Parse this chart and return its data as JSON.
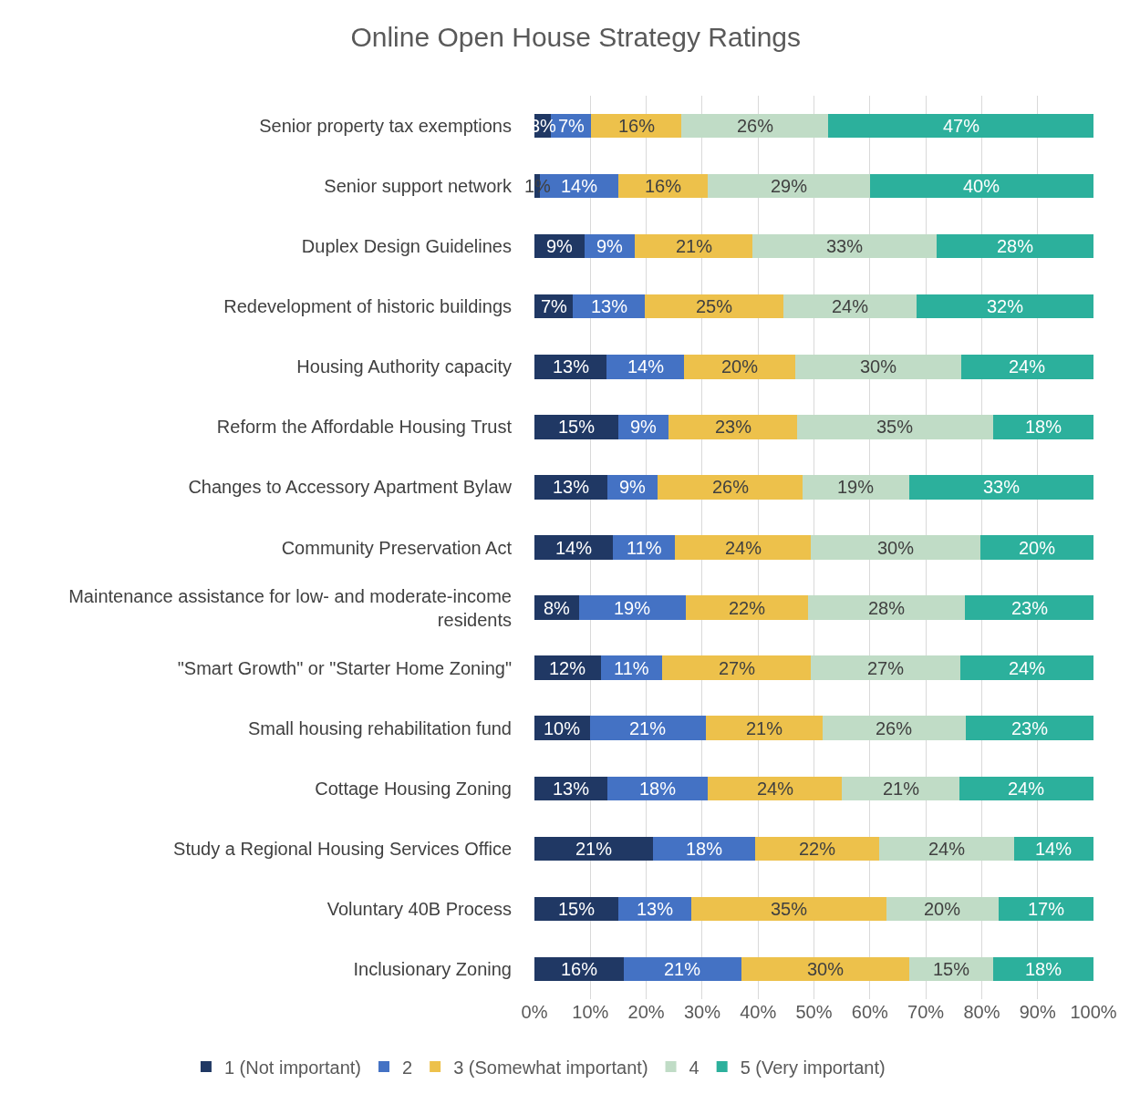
{
  "chart_data": {
    "type": "bar",
    "title": "Online Open House Strategy Ratings",
    "orientation": "horizontal",
    "stacked": true,
    "categories": [
      "Senior property tax exemptions",
      "Senior support network",
      "Duplex Design Guidelines",
      "Redevelopment of historic buildings",
      "Housing Authority capacity",
      "Reform the Affordable Housing Trust",
      "Changes to Accessory Apartment Bylaw",
      "Community Preservation Act",
      "Maintenance assistance for low- and moderate-income residents",
      "\"Smart Growth\" or \"Starter Home Zoning\"",
      "Small housing rehabilitation fund",
      "Cottage Housing Zoning",
      "Study a Regional Housing Services Office",
      "Voluntary 40B Process",
      "Inclusionary Zoning"
    ],
    "series": [
      {
        "name": "1 (Not important)",
        "color": "#203864",
        "values": [
          3.0,
          1,
          9,
          6.9,
          12.9,
          15,
          13,
          14.1,
          8,
          11.9,
          9.9,
          13,
          21.2,
          15,
          16
        ],
        "value_labels": [
          "3%",
          "1%",
          "9%",
          "7%",
          "13%",
          "15%",
          "13%",
          "14%",
          "8%",
          "12%",
          "10%",
          "13%",
          "21%",
          "15%",
          "16%"
        ]
      },
      {
        "name": "2",
        "color": "#4472c4",
        "values": [
          7.1,
          14,
          9,
          12.9,
          13.9,
          9,
          9,
          11.1,
          19,
          10.9,
          20.8,
          18,
          18.2,
          13,
          21
        ],
        "value_labels": [
          "7%",
          "14%",
          "9%",
          "13%",
          "14%",
          "9%",
          "9%",
          "11%",
          "19%",
          "11%",
          "21%",
          "18%",
          "18%",
          "13%",
          "21%"
        ]
      },
      {
        "name": "3 (Somewhat important)",
        "color": "#edc14b",
        "values": [
          16.2,
          16,
          21,
          24.8,
          19.8,
          23,
          26,
          24.3,
          22,
          26.7,
          20.8,
          24,
          22.2,
          35,
          30
        ],
        "value_labels": [
          "16%",
          "16%",
          "21%",
          "25%",
          "20%",
          "23%",
          "26%",
          "24%",
          "22%",
          "27%",
          "21%",
          "24%",
          "22%",
          "35%",
          "30%"
        ]
      },
      {
        "name": "4",
        "color": "#c0dcc6",
        "values": [
          26.3,
          29,
          33,
          23.8,
          29.7,
          35,
          19,
          30.3,
          28,
          26.7,
          25.7,
          21,
          24.2,
          20,
          15
        ],
        "value_labels": [
          "26%",
          "29%",
          "33%",
          "24%",
          "30%",
          "35%",
          "19%",
          "30%",
          "28%",
          "27%",
          "26%",
          "21%",
          "24%",
          "20%",
          "15%"
        ]
      },
      {
        "name": "5 (Very important)",
        "color": "#2cb09c",
        "values": [
          47.4,
          40,
          28,
          31.6,
          23.7,
          18,
          33,
          20.2,
          23,
          23.8,
          22.8,
          24,
          14.2,
          17,
          18
        ],
        "value_labels": [
          "47%",
          "40%",
          "28%",
          "32%",
          "24%",
          "18%",
          "33%",
          "20%",
          "23%",
          "24%",
          "23%",
          "24%",
          "14%",
          "17%",
          "18%"
        ]
      }
    ],
    "xlim": [
      0,
      100
    ],
    "xticks": [
      {
        "value": 0,
        "label": "0%"
      },
      {
        "value": 10,
        "label": "10%"
      },
      {
        "value": 20,
        "label": "20%"
      },
      {
        "value": 30,
        "label": "30%"
      },
      {
        "value": 40,
        "label": "40%"
      },
      {
        "value": 50,
        "label": "50%"
      },
      {
        "value": 60,
        "label": "60%"
      },
      {
        "value": 70,
        "label": "70%"
      },
      {
        "value": 80,
        "label": "80%"
      },
      {
        "value": 90,
        "label": "90%"
      },
      {
        "value": 100,
        "label": "100%"
      }
    ],
    "grid": "x",
    "legend": "bottom"
  }
}
